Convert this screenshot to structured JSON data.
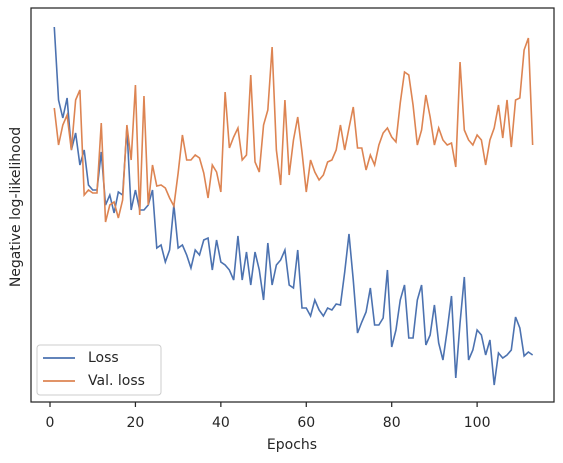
{
  "chart_data": {
    "type": "line",
    "xlabel": "Epochs",
    "ylabel": "Negative log-likelihood",
    "x": [
      1,
      2,
      3,
      4,
      5,
      6,
      7,
      8,
      9,
      10,
      11,
      12,
      13,
      14,
      15,
      16,
      17,
      18,
      19,
      20,
      21,
      22,
      23,
      24,
      25,
      26,
      27,
      28,
      29,
      30,
      31,
      32,
      33,
      34,
      35,
      36,
      37,
      38,
      39,
      40,
      41,
      42,
      43,
      44,
      45,
      46,
      47,
      48,
      49,
      50,
      51,
      52,
      53,
      54,
      55,
      56,
      57,
      58,
      59,
      60,
      61,
      62,
      63,
      64,
      65,
      66,
      67,
      68,
      69,
      70,
      71,
      72,
      73,
      74,
      75,
      76,
      77,
      78,
      79,
      80,
      81,
      82,
      83,
      84,
      85,
      86,
      87,
      88,
      89,
      90,
      91,
      92,
      93,
      94,
      95,
      96,
      97,
      98,
      99,
      100,
      101,
      102,
      103,
      104,
      105,
      106,
      107,
      108,
      109,
      110,
      111,
      112,
      113
    ],
    "series": [
      {
        "name": "Loss",
        "color": "#4c72b0",
        "values": [
          375,
          302,
          284,
          304,
          252,
          269,
          237,
          252,
          217,
          212,
          212,
          250,
          197,
          207,
          189,
          210,
          207,
          274,
          192,
          212,
          192,
          192,
          197,
          212,
          154,
          157,
          140,
          152,
          197,
          154,
          157,
          147,
          134,
          152,
          147,
          162,
          164,
          132,
          162,
          140,
          137,
          132,
          122,
          166,
          122,
          150,
          117,
          150,
          132,
          102,
          159,
          117,
          137,
          142,
          152,
          117,
          114,
          152,
          94,
          94,
          86,
          102,
          92,
          86,
          94,
          92,
          98,
          97,
          130,
          168,
          122,
          69,
          80,
          90,
          114,
          77,
          77,
          84,
          132,
          55,
          72,
          102,
          117,
          64,
          64,
          102,
          117,
          57,
          67,
          97,
          59,
          42,
          72,
          106,
          24,
          79,
          125,
          42,
          52,
          72,
          67,
          47,
          62,
          17,
          49,
          44,
          47,
          52,
          85,
          74,
          46,
          50,
          47
        ]
      },
      {
        "name": "Val. loss",
        "color": "#dd8452",
        "values": [
          294,
          257,
          277,
          287,
          252,
          302,
          312,
          207,
          212,
          209,
          209,
          279,
          180,
          197,
          200,
          184,
          202,
          277,
          242,
          317,
          187,
          306,
          197,
          237,
          216,
          217,
          214,
          204,
          196,
          229,
          267,
          242,
          242,
          247,
          244,
          229,
          204,
          237,
          230,
          210,
          310,
          254,
          265,
          274,
          242,
          247,
          327,
          240,
          230,
          277,
          292,
          355,
          252,
          217,
          302,
          227,
          262,
          285,
          250,
          210,
          242,
          230,
          222,
          227,
          240,
          242,
          252,
          277,
          252,
          274,
          295,
          254,
          254,
          232,
          247,
          237,
          257,
          269,
          274,
          265,
          260,
          299,
          330,
          327,
          297,
          257,
          272,
          307,
          285,
          257,
          274,
          262,
          257,
          259,
          235,
          340,
          272,
          262,
          257,
          267,
          262,
          237,
          262,
          274,
          297,
          264,
          302,
          255,
          302,
          304,
          352,
          364,
          257
        ]
      }
    ],
    "xlim": [
      -4.45,
      118
    ],
    "xticks": [
      0,
      20,
      40,
      60,
      80,
      100
    ],
    "ylim": [
      0,
      394
    ],
    "legend": "lower left"
  }
}
